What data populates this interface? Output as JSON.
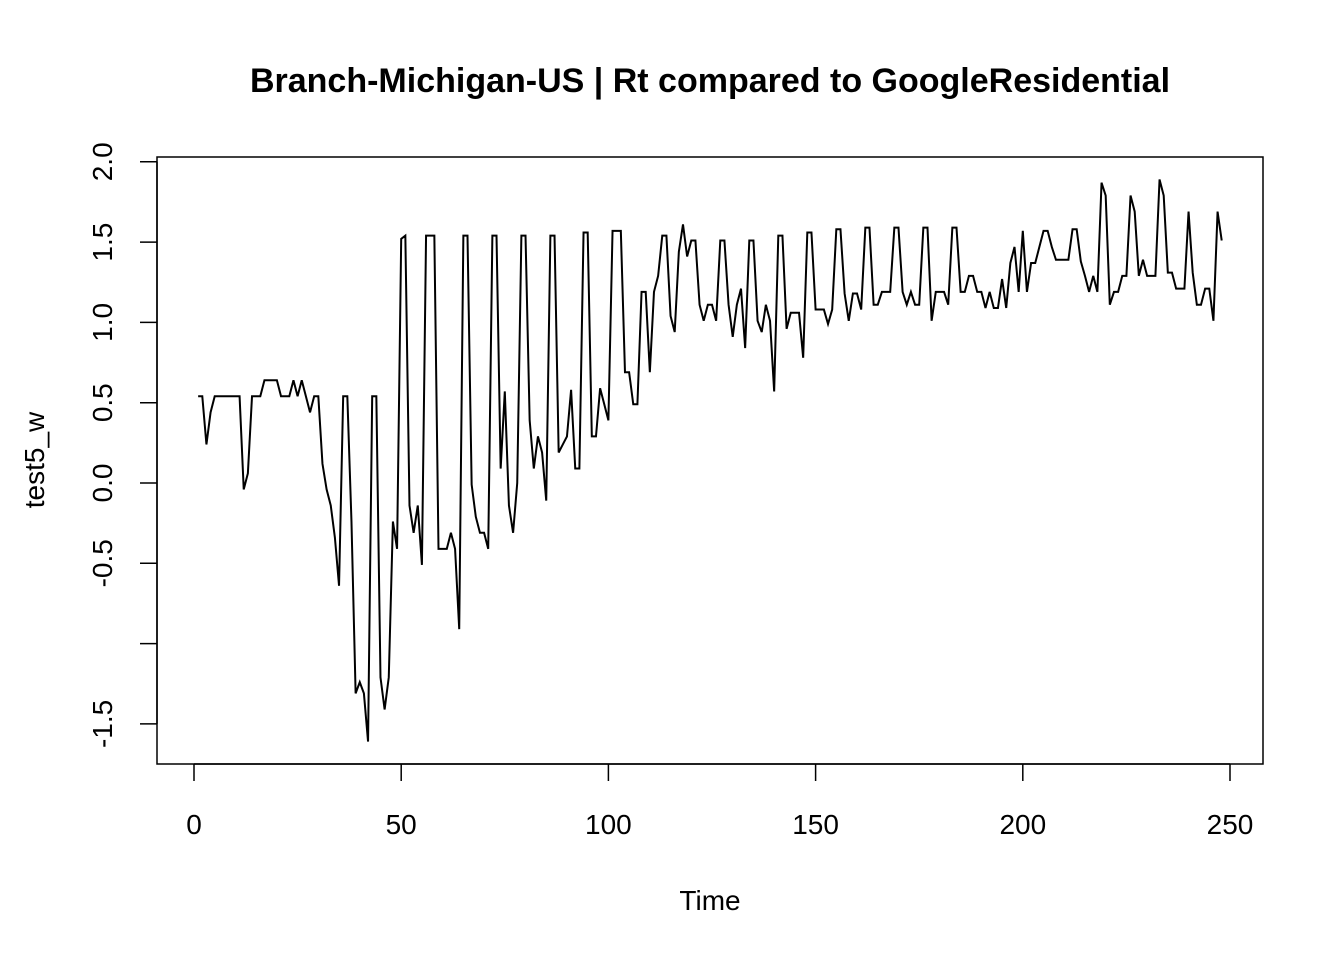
{
  "chart_data": {
    "type": "line",
    "title": "Branch-Michigan-US | Rt compared to GoogleResidential",
    "xlabel": "Time",
    "ylabel": "test5_w",
    "xlim": [
      0,
      250
    ],
    "ylim": [
      -1.5,
      2.0
    ],
    "x_ticks": [
      0,
      50,
      100,
      150,
      200,
      250
    ],
    "x_tick_labels": [
      "0",
      "50",
      "100",
      "150",
      "200",
      "250"
    ],
    "y_ticks": [
      -1.5,
      -1.0,
      -0.5,
      0.0,
      0.5,
      1.0,
      1.5,
      2.0
    ],
    "y_tick_labels": [
      "-1.5",
      "",
      "-0.5",
      "0.0",
      "0.5",
      "1.0",
      "1.5",
      "2.0"
    ],
    "grid": false,
    "series": [
      {
        "color": "#000000",
        "x_start": 1,
        "values": [
          0.54,
          0.54,
          0.24,
          0.44,
          0.54,
          0.54,
          0.54,
          0.54,
          0.54,
          0.54,
          0.54,
          -0.04,
          0.06,
          0.54,
          0.54,
          0.54,
          0.64,
          0.64,
          0.64,
          0.64,
          0.54,
          0.54,
          0.54,
          0.64,
          0.54,
          0.64,
          0.54,
          0.44,
          0.54,
          0.54,
          0.12,
          -0.04,
          -0.14,
          -0.34,
          -0.64,
          0.54,
          0.54,
          -0.24,
          -1.31,
          -1.24,
          -1.31,
          -1.61,
          0.54,
          0.54,
          -1.21,
          -1.41,
          -1.21,
          -0.24,
          -0.41,
          1.52,
          1.54,
          -0.14,
          -0.31,
          -0.14,
          -0.51,
          1.54,
          1.54,
          1.54,
          -0.41,
          -0.41,
          -0.41,
          -0.31,
          -0.41,
          -0.91,
          1.54,
          1.54,
          -0.01,
          -0.21,
          -0.31,
          -0.31,
          -0.41,
          1.54,
          1.54,
          0.09,
          0.57,
          -0.14,
          -0.31,
          0.0,
          1.54,
          1.54,
          0.39,
          0.09,
          0.29,
          0.19,
          -0.11,
          1.54,
          1.54,
          0.19,
          0.24,
          0.29,
          0.58,
          0.09,
          0.09,
          1.56,
          1.56,
          0.29,
          0.29,
          0.59,
          0.49,
          0.39,
          1.57,
          1.57,
          1.57,
          0.69,
          0.69,
          0.49,
          0.49,
          1.19,
          1.19,
          0.69,
          1.19,
          1.29,
          1.54,
          1.54,
          1.04,
          0.94,
          1.44,
          1.61,
          1.41,
          1.51,
          1.51,
          1.11,
          1.01,
          1.11,
          1.11,
          1.01,
          1.51,
          1.51,
          1.11,
          0.91,
          1.11,
          1.21,
          0.84,
          1.51,
          1.51,
          1.01,
          0.94,
          1.11,
          1.01,
          0.57,
          1.54,
          1.54,
          0.96,
          1.06,
          1.06,
          1.06,
          0.78,
          1.56,
          1.56,
          1.08,
          1.08,
          1.08,
          0.99,
          1.08,
          1.58,
          1.58,
          1.18,
          1.01,
          1.18,
          1.18,
          1.08,
          1.59,
          1.59,
          1.11,
          1.11,
          1.19,
          1.19,
          1.19,
          1.59,
          1.59,
          1.19,
          1.11,
          1.19,
          1.11,
          1.11,
          1.59,
          1.59,
          1.01,
          1.19,
          1.19,
          1.19,
          1.11,
          1.59,
          1.59,
          1.19,
          1.19,
          1.29,
          1.29,
          1.19,
          1.19,
          1.09,
          1.19,
          1.09,
          1.09,
          1.27,
          1.09,
          1.37,
          1.47,
          1.19,
          1.57,
          1.19,
          1.37,
          1.37,
          1.47,
          1.57,
          1.57,
          1.47,
          1.39,
          1.39,
          1.39,
          1.39,
          1.58,
          1.58,
          1.38,
          1.29,
          1.19,
          1.29,
          1.19,
          1.87,
          1.79,
          1.11,
          1.19,
          1.19,
          1.29,
          1.29,
          1.79,
          1.69,
          1.29,
          1.39,
          1.29,
          1.29,
          1.29,
          1.89,
          1.79,
          1.31,
          1.31,
          1.21,
          1.21,
          1.21,
          1.69,
          1.31,
          1.11,
          1.11,
          1.21,
          1.21,
          1.01,
          1.69,
          1.51
        ]
      }
    ]
  }
}
